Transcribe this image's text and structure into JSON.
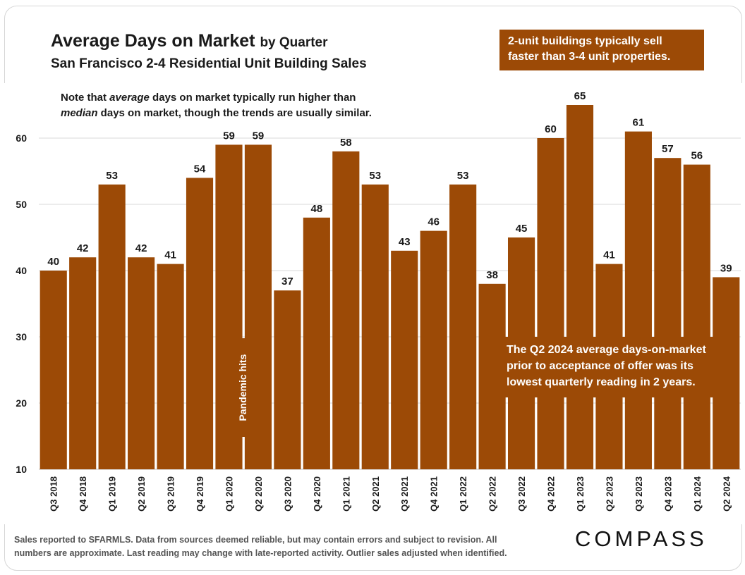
{
  "header": {
    "title_bold": "Average Days on Market",
    "title_suffix": "by Quarter",
    "subtitle": "San Francisco 2-4 Residential Unit Building Sales"
  },
  "callouts": {
    "top_line1": "2-unit buildings typically sell",
    "top_line2": "faster than 3-4 unit properties.",
    "bottom_line1": "The Q2 2024 average days-on-market",
    "bottom_line2": "prior to acceptance of offer was its",
    "bottom_line3": "lowest quarterly reading in 2 years."
  },
  "note": {
    "l1_a": "Note that ",
    "l1_b": "average",
    "l1_c": " days on market typically run higher than",
    "l2_a": "median",
    "l2_b": " days on market, though the trends are usually similar."
  },
  "annotation": {
    "pandemic": "Pandemic hits"
  },
  "footer": {
    "line1": "Sales reported to SFARMLS. Data from sources deemed reliable, but may contain errors and subject to revision. All",
    "line2": "numbers are approximate. Last reading may change with late-reported activity. Outlier sales adjusted when identified."
  },
  "brand": {
    "logo": "COMPASS"
  },
  "colors": {
    "bar": "#9c4a06",
    "label": "#1a1a1a",
    "grid": "#d9d9d9"
  },
  "chart_data": {
    "type": "bar",
    "title": "Average Days on Market by Quarter",
    "subtitle": "San Francisco 2-4 Residential Unit Building Sales",
    "xlabel": "",
    "ylabel": "",
    "ylim": [
      10,
      67
    ],
    "yticks": [
      10,
      20,
      30,
      40,
      50,
      60
    ],
    "categories": [
      "Q3 2018",
      "Q4 2018",
      "Q1 2019",
      "Q2 2019",
      "Q3 2019",
      "Q4 2019",
      "Q1 2020",
      "Q2 2020",
      "Q3 2020",
      "Q4 2020",
      "Q1 2021",
      "Q2 2021",
      "Q3 2021",
      "Q4 2021",
      "Q1 2022",
      "Q2 2022",
      "Q3 2022",
      "Q4 2022",
      "Q1 2023",
      "Q2 2023",
      "Q3 2023",
      "Q4 2023",
      "Q1 2024",
      "Q2 2024"
    ],
    "values": [
      40,
      42,
      53,
      42,
      41,
      54,
      59,
      59,
      37,
      48,
      58,
      53,
      43,
      46,
      53,
      38,
      45,
      60,
      65,
      41,
      61,
      57,
      56,
      39
    ],
    "data_labels": [
      "40",
      "42",
      "53",
      "42",
      "41",
      "54",
      "59",
      "59",
      "37",
      "48",
      "58",
      "53",
      "43",
      "46",
      "53",
      "38",
      "45",
      "60",
      "65",
      "41",
      "61",
      "57",
      "56",
      "39"
    ],
    "grid": true,
    "legend": "none"
  }
}
